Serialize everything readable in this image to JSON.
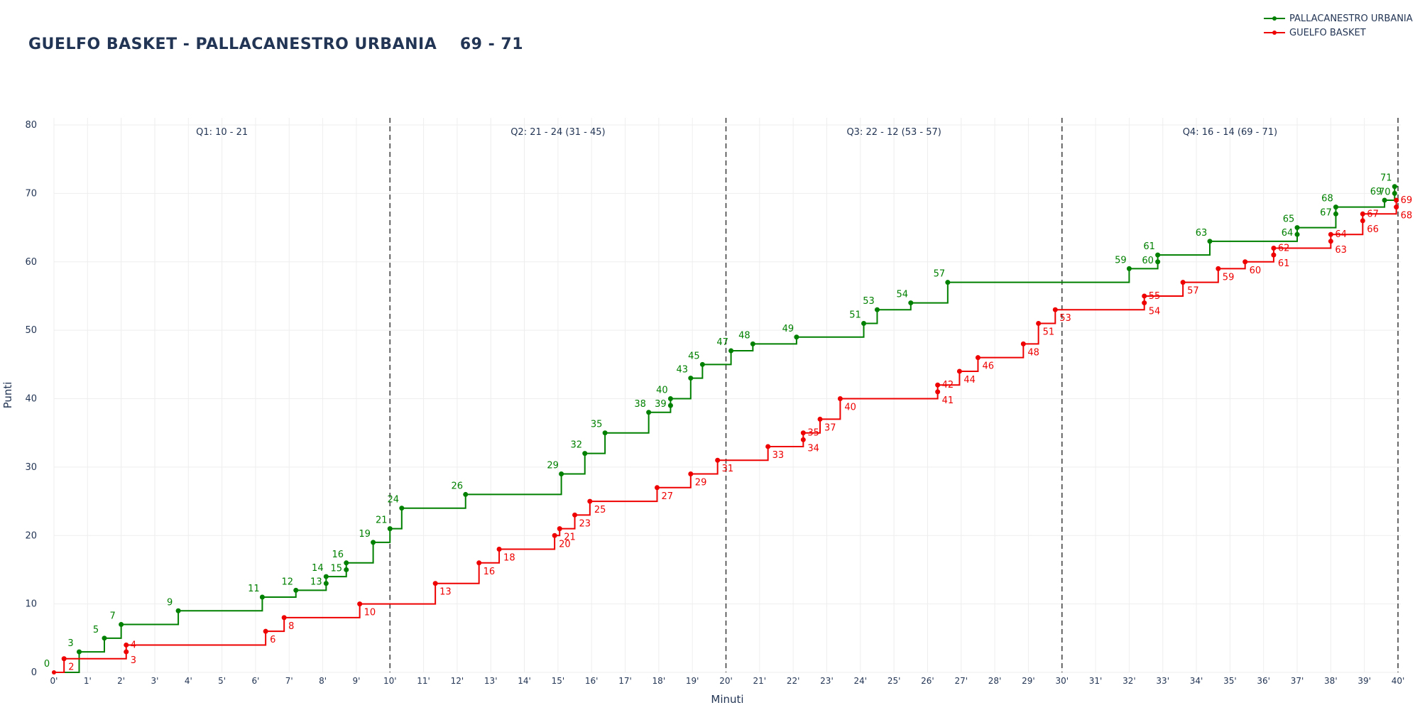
{
  "title": "GUELFO BASKET - PALLACANESTRO URBANIA",
  "score_label": "69 - 71",
  "chart_data": {
    "type": "line",
    "xlabel": "Minuti",
    "ylabel": "Punti",
    "xlim": [
      0,
      40
    ],
    "ylim": [
      0,
      80
    ],
    "x_ticks": [
      0,
      1,
      2,
      3,
      4,
      5,
      6,
      7,
      8,
      9,
      10,
      11,
      12,
      13,
      14,
      15,
      16,
      17,
      18,
      19,
      20,
      21,
      22,
      23,
      24,
      25,
      26,
      27,
      28,
      29,
      30,
      31,
      32,
      33,
      34,
      35,
      36,
      37,
      38,
      39,
      40
    ],
    "x_tick_labels": [
      "0'",
      "1'",
      "2'",
      "3'",
      "4'",
      "5'",
      "6'",
      "7'",
      "8'",
      "9'",
      "10'",
      "11'",
      "12'",
      "13'",
      "14'",
      "15'",
      "16'",
      "17'",
      "18'",
      "19'",
      "20'",
      "21'",
      "22'",
      "23'",
      "24'",
      "25'",
      "26'",
      "27'",
      "28'",
      "29'",
      "30'",
      "31'",
      "32'",
      "33'",
      "34'",
      "35'",
      "36'",
      "37'",
      "38'",
      "39'",
      "40'"
    ],
    "y_ticks": [
      0,
      10,
      20,
      30,
      40,
      50,
      60,
      70,
      80
    ],
    "grid": true,
    "legend_position": "top-right",
    "quarter_lines": [
      10,
      20,
      30,
      40
    ],
    "quarters": [
      {
        "label": "Q1: 10 - 21",
        "x": 5
      },
      {
        "label": "Q2: 21 - 24 (31 - 45)",
        "x": 15
      },
      {
        "label": "Q3: 22 - 12 (53 - 57)",
        "x": 25
      },
      {
        "label": "Q4: 16 - 14 (69 - 71)",
        "x": 35
      }
    ],
    "series": [
      {
        "name": "PALLACANESTRO URBANIA",
        "color": "#008000",
        "points": [
          [
            0.75,
            3
          ],
          [
            1.5,
            5
          ],
          [
            2.0,
            7
          ],
          [
            3.7,
            9
          ],
          [
            6.2,
            11
          ],
          [
            7.2,
            12
          ],
          [
            8.1,
            13
          ],
          [
            8.1,
            14
          ],
          [
            8.7,
            15
          ],
          [
            8.7,
            16
          ],
          [
            9.5,
            19
          ],
          [
            10.0,
            21
          ],
          [
            10.35,
            24
          ],
          [
            12.25,
            26
          ],
          [
            15.1,
            29
          ],
          [
            15.8,
            32
          ],
          [
            16.4,
            35
          ],
          [
            17.7,
            38
          ],
          [
            18.35,
            39
          ],
          [
            18.35,
            40
          ],
          [
            18.95,
            43
          ],
          [
            19.3,
            45
          ],
          [
            20.15,
            47
          ],
          [
            20.8,
            48
          ],
          [
            22.1,
            49
          ],
          [
            24.1,
            51
          ],
          [
            24.5,
            53
          ],
          [
            25.5,
            54
          ],
          [
            26.6,
            57
          ],
          [
            32.0,
            59
          ],
          [
            32.85,
            60
          ],
          [
            32.85,
            61
          ],
          [
            34.4,
            63
          ],
          [
            37.0,
            64
          ],
          [
            37.0,
            65
          ],
          [
            38.15,
            67
          ],
          [
            38.15,
            68
          ],
          [
            39.6,
            69
          ],
          [
            39.9,
            70
          ],
          [
            39.9,
            71
          ]
        ],
        "label_side": "above"
      },
      {
        "name": "GUELFO BASKET",
        "color": "#ee0000",
        "points": [
          [
            0.3,
            2
          ],
          [
            2.15,
            3
          ],
          [
            2.15,
            4
          ],
          [
            6.3,
            6
          ],
          [
            6.85,
            8
          ],
          [
            9.1,
            10
          ],
          [
            11.35,
            13
          ],
          [
            12.65,
            16
          ],
          [
            13.25,
            18
          ],
          [
            14.9,
            20
          ],
          [
            15.05,
            21
          ],
          [
            15.5,
            23
          ],
          [
            15.95,
            25
          ],
          [
            17.95,
            27
          ],
          [
            18.95,
            29
          ],
          [
            19.75,
            31
          ],
          [
            21.25,
            33
          ],
          [
            22.3,
            34
          ],
          [
            22.3,
            35
          ],
          [
            22.8,
            37
          ],
          [
            23.4,
            40
          ],
          [
            26.3,
            41
          ],
          [
            26.3,
            42
          ],
          [
            26.95,
            44
          ],
          [
            27.5,
            46
          ],
          [
            28.85,
            48
          ],
          [
            29.3,
            51
          ],
          [
            29.8,
            53
          ],
          [
            32.45,
            54
          ],
          [
            32.45,
            55
          ],
          [
            33.6,
            57
          ],
          [
            34.65,
            59
          ],
          [
            35.45,
            60
          ],
          [
            36.3,
            61
          ],
          [
            36.3,
            62
          ],
          [
            38.0,
            63
          ],
          [
            38.0,
            64
          ],
          [
            38.95,
            66
          ],
          [
            38.95,
            67
          ],
          [
            39.95,
            68
          ],
          [
            39.95,
            69
          ]
        ],
        "label_side": "below"
      }
    ]
  }
}
